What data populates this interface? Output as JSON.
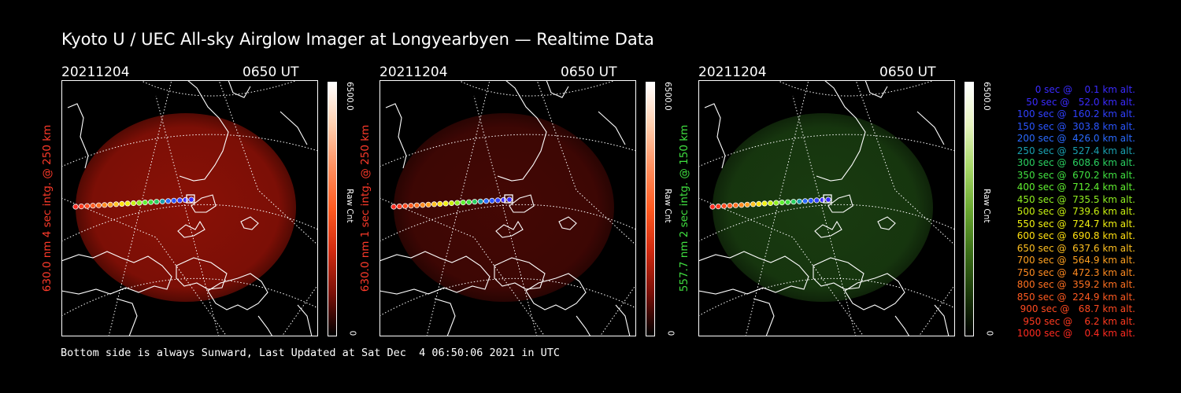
{
  "title": "Kyoto U / UEC All-sky Airglow Imager at Longyearbyen — Realtime Data",
  "footer": "Bottom side is always Sunward, Last Updated at Sat Dec  4 06:50:06 2021 in UTC",
  "panels": [
    {
      "date": "20211204",
      "time": "0650 UT",
      "ylabel": "630.0 nm 4 sec intg. @ 250 km",
      "cmax": "6500.0",
      "cmin": "0",
      "unit": "Raw Cnt",
      "color": "#ff3a2a",
      "glow": "#b01508",
      "glowOpacity": 0.78,
      "colormap": [
        "#ffffff",
        "#ffd0b0",
        "#ff9060",
        "#ff5a20",
        "#d02a10",
        "#7a1008",
        "#000000"
      ]
    },
    {
      "date": "20211204",
      "time": "0650 UT",
      "ylabel": "630.0 nm 1 sec intg. @ 250 km",
      "cmax": "6500.0",
      "cmin": "0",
      "unit": "Raw Cnt",
      "color": "#ff3a2a",
      "glow": "#5a0a06",
      "glowOpacity": 0.75,
      "colormap": [
        "#ffffff",
        "#ffd0b0",
        "#ff9060",
        "#ff5a20",
        "#d02a10",
        "#7a1008",
        "#000000"
      ]
    },
    {
      "date": "20211204",
      "time": "0650 UT",
      "ylabel": "557.7 nm 2 sec intg. @ 150 km",
      "cmax": "6500.0",
      "cmin": "0",
      "unit": "Raw Cnt",
      "color": "#40e040",
      "glow": "#1f4a14",
      "glowOpacity": 0.8,
      "colormap": [
        "#ffffff",
        "#e8f4c0",
        "#a8d868",
        "#6aa830",
        "#3c7018",
        "#1c3a0a",
        "#000000"
      ]
    }
  ],
  "legend": [
    {
      "text": "0 sec @    0.1 km alt.",
      "color": "#3a2aff"
    },
    {
      "text": "50 sec @   52.0 km alt.",
      "color": "#3a2aff"
    },
    {
      "text": "100 sec @  160.2 km alt.",
      "color": "#3040ff"
    },
    {
      "text": "150 sec @  303.8 km alt.",
      "color": "#2a55ff"
    },
    {
      "text": "200 sec @  426.0 km alt.",
      "color": "#2a6aff"
    },
    {
      "text": "250 sec @  527.4 km alt.",
      "color": "#1aa0b0"
    },
    {
      "text": "300 sec @  608.6 km alt.",
      "color": "#2ad060"
    },
    {
      "text": "350 sec @  670.2 km alt.",
      "color": "#40e040"
    },
    {
      "text": "400 sec @  712.4 km alt.",
      "color": "#60f030"
    },
    {
      "text": "450 sec @  735.5 km alt.",
      "color": "#90f020"
    },
    {
      "text": "500 sec @  739.6 km alt.",
      "color": "#c8f010"
    },
    {
      "text": "550 sec @  724.7 km alt.",
      "color": "#f0f010"
    },
    {
      "text": "600 sec @  690.8 km alt.",
      "color": "#ffe010"
    },
    {
      "text": "650 sec @  637.6 km alt.",
      "color": "#ffc020"
    },
    {
      "text": "700 sec @  564.9 km alt.",
      "color": "#ffa020"
    },
    {
      "text": "750 sec @  472.3 km alt.",
      "color": "#ff8a20"
    },
    {
      "text": "800 sec @  359.2 km alt.",
      "color": "#ff7020"
    },
    {
      "text": "850 sec @  224.9 km alt.",
      "color": "#ff5a20"
    },
    {
      "text": "900 sec @   68.7 km alt.",
      "color": "#ff4a20"
    },
    {
      "text": "950 sec @    6.2 km alt.",
      "color": "#ff3a20"
    },
    {
      "text": "1000 sec @    0.4 km alt.",
      "color": "#ff2a20"
    }
  ]
}
